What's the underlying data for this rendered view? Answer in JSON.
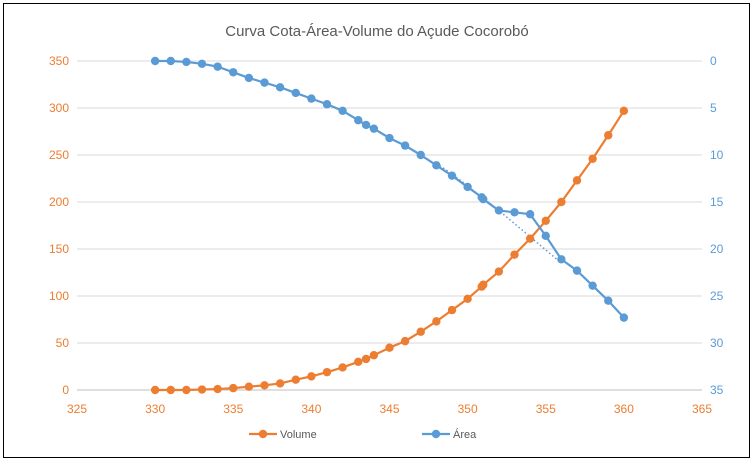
{
  "chart_data": {
    "type": "line",
    "title": "Curva Cota-Área-Volume do Açude Cocorobó",
    "xlim": [
      325,
      365
    ],
    "x_ticks": [
      325,
      330,
      335,
      340,
      345,
      350,
      355,
      360,
      365
    ],
    "y_left_lim": [
      0,
      350
    ],
    "y_left_ticks": [
      0,
      50,
      100,
      150,
      200,
      250,
      300,
      350
    ],
    "y_right_lim": [
      35,
      0
    ],
    "y_right_ticks": [
      0,
      5,
      10,
      15,
      20,
      25,
      30,
      35
    ],
    "y_right_inverted": true,
    "grid": "horizontal",
    "legend": "bottom",
    "series": [
      {
        "name": "Volume",
        "axis": "left",
        "color": "#ed7d31",
        "x": [
          330,
          331,
          332,
          333,
          334,
          335,
          336,
          337,
          338,
          339,
          340,
          341,
          342,
          343,
          343.5,
          344,
          345,
          346,
          347,
          348,
          349,
          350,
          350.9,
          351,
          352,
          353,
          354,
          355,
          356,
          357,
          358,
          359,
          360
        ],
        "y": [
          0,
          0,
          0,
          0.5,
          1,
          2,
          3.5,
          5,
          7,
          11,
          14.5,
          19,
          24,
          30,
          33,
          37,
          45,
          52,
          62,
          73,
          85,
          97,
          110,
          112,
          126,
          144,
          161,
          180,
          200,
          223,
          246,
          271,
          297
        ]
      },
      {
        "name": "Área",
        "axis": "right",
        "color": "#5b9bd5",
        "x": [
          330,
          331,
          332,
          333,
          334,
          335,
          336,
          337,
          338,
          339,
          340,
          341,
          342,
          343,
          343.5,
          344,
          345,
          346,
          347,
          348,
          349,
          350,
          350.9,
          351,
          352,
          353,
          354,
          355,
          356,
          357,
          358,
          359,
          360
        ],
        "y": [
          0,
          0,
          0.1,
          0.3,
          0.6,
          1.2,
          1.8,
          2.3,
          2.8,
          3.4,
          4.0,
          4.6,
          5.3,
          6.3,
          6.8,
          7.2,
          8.2,
          9.0,
          10.0,
          11.1,
          12.2,
          13.4,
          14.5,
          14.7,
          15.9,
          16.1,
          16.3,
          18.6,
          21.1,
          22.3,
          23.9,
          25.5,
          27.3
        ]
      }
    ],
    "trendline": {
      "series": "Área",
      "style": "dotted",
      "color": "#5b9bd5",
      "x": [
        348,
        349,
        350,
        351,
        352,
        353,
        354,
        355,
        356
      ],
      "y": [
        10.9,
        12.0,
        13.3,
        14.6,
        15.9,
        17.3,
        18.7,
        20.1,
        21.5
      ]
    }
  }
}
